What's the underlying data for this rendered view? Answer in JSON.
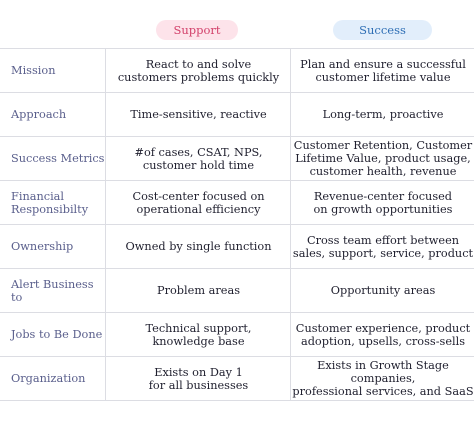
{
  "columns": {
    "support": "Support",
    "success": "Success"
  },
  "rows": [
    {
      "label": "Mission",
      "support": "React to and solve\ncustomers problems quickly",
      "success": "Plan and ensure a successful\ncustomer lifetime value"
    },
    {
      "label": "Approach",
      "support": "Time-sensitive, reactive",
      "success": "Long-term, proactive"
    },
    {
      "label": "Success Metrics",
      "support": "#of cases, CSAT, NPS,\ncustomer hold time",
      "success": "Customer Retention, Customer\nLifetime Value, product usage,\ncustomer health, revenue"
    },
    {
      "label": "Financial\nResponsibilty",
      "support": "Cost-center focused on\noperational efficiency",
      "success": "Revenue-center focused\non growth opportunities"
    },
    {
      "label": "Ownership",
      "support": "Owned by single function",
      "success": "Cross team effort between\nsales, support, service, product"
    },
    {
      "label": "Alert Business to",
      "support": "Problem areas",
      "success": "Opportunity areas"
    },
    {
      "label": "Jobs to Be Done",
      "support": "Technical support,\nknowledge base",
      "success": "Customer experience, product\nadoption, upsells, cross-sells"
    },
    {
      "label": "Organization",
      "support": "Exists on Day 1\nfor all businesses",
      "success": "Exists in Growth Stage companies,\nprofessional services, and SaaS"
    }
  ],
  "colors": {
    "support_pill_bg": "#fde3ea",
    "support_pill_text": "#d2406a",
    "success_pill_bg": "#e2eefb",
    "success_pill_text": "#2f6fb5",
    "label_text": "#5a5f8c",
    "grid": "#dcdde3"
  }
}
